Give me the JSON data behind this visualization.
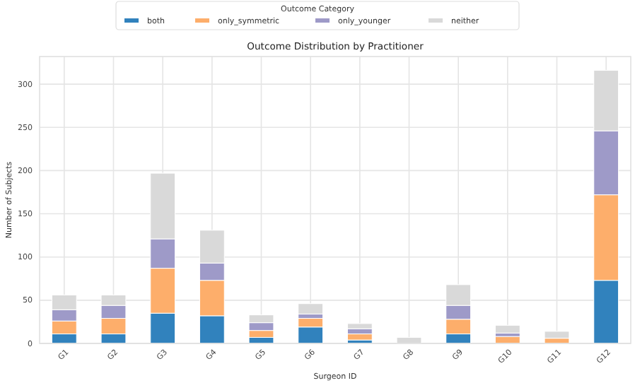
{
  "chart_data": {
    "type": "bar",
    "title": "Outcome Distribution by Practitioner",
    "xlabel": "Surgeon ID",
    "ylabel": "Number of Subjects",
    "legend_title": "Outcome Category",
    "categories": [
      "G1",
      "G2",
      "G3",
      "G4",
      "G5",
      "G6",
      "G7",
      "G8",
      "G9",
      "G10",
      "G11",
      "G12"
    ],
    "series": [
      {
        "name": "both",
        "color": "#3182bd",
        "values": [
          11,
          11,
          35,
          32,
          7,
          19,
          4,
          0,
          11,
          null,
          null,
          73
        ]
      },
      {
        "name": "only_symmetric",
        "color": "#fdae6b",
        "values": [
          15,
          18,
          52,
          41,
          8,
          10,
          7,
          null,
          17,
          8,
          6,
          99
        ]
      },
      {
        "name": "only_younger",
        "color": "#9e9ac8",
        "values": [
          13,
          15,
          34,
          20,
          9,
          5,
          6,
          0,
          16,
          4,
          null,
          74
        ]
      },
      {
        "name": "neither",
        "color": "#d9d9d9",
        "values": [
          17,
          12,
          76,
          38,
          9,
          12,
          6,
          7,
          24,
          9,
          8,
          70
        ]
      }
    ],
    "stacked": true,
    "ylim": [
      0,
      332
    ],
    "yticks": [
      0,
      50,
      100,
      150,
      200,
      250,
      300
    ],
    "grid": true,
    "legend": "top"
  }
}
